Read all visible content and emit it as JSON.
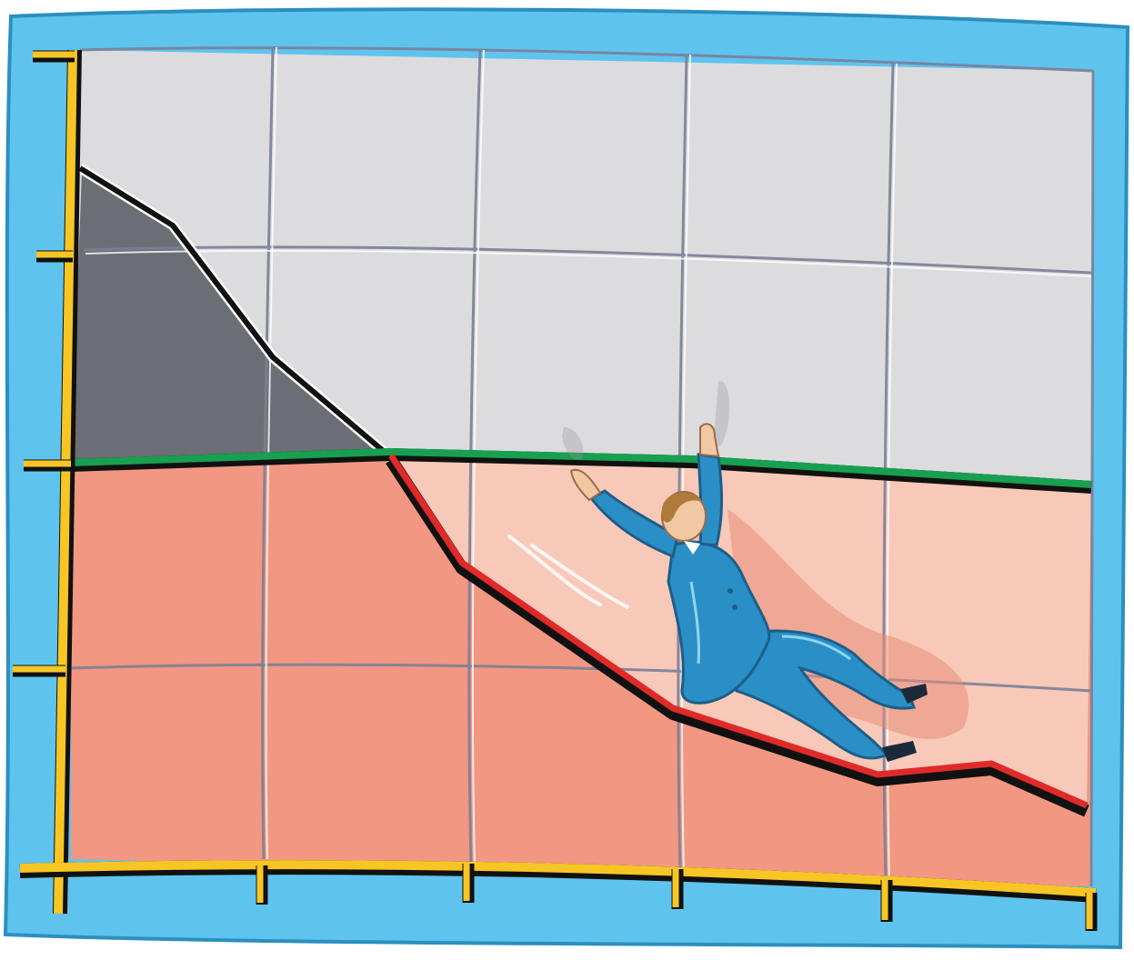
{
  "illustration": {
    "subject": "man-sliding-down-falling-line-chart",
    "colors": {
      "frame_blue": "#5EC4EE",
      "frame_blue_dark": "#3AA6D6",
      "grid_gray": "#DCDCDE",
      "grid_line": "#7A7F98",
      "dark_area": "#6B6E74",
      "lower_red": "#F29782",
      "lower_pink": "#F8C9B8",
      "axis_yellow": "#F7C625",
      "baseline_green": "#17A050",
      "trend_red": "#E02A2A",
      "outline_black": "#111111",
      "suit_blue": "#2A8FC6",
      "suit_blue_dark": "#1D6E9E",
      "skin": "#F2C7A4",
      "hair": "#B07A3C"
    },
    "icons": [
      "man-figure",
      "trend-line",
      "baseline",
      "y-axis",
      "x-axis"
    ]
  }
}
